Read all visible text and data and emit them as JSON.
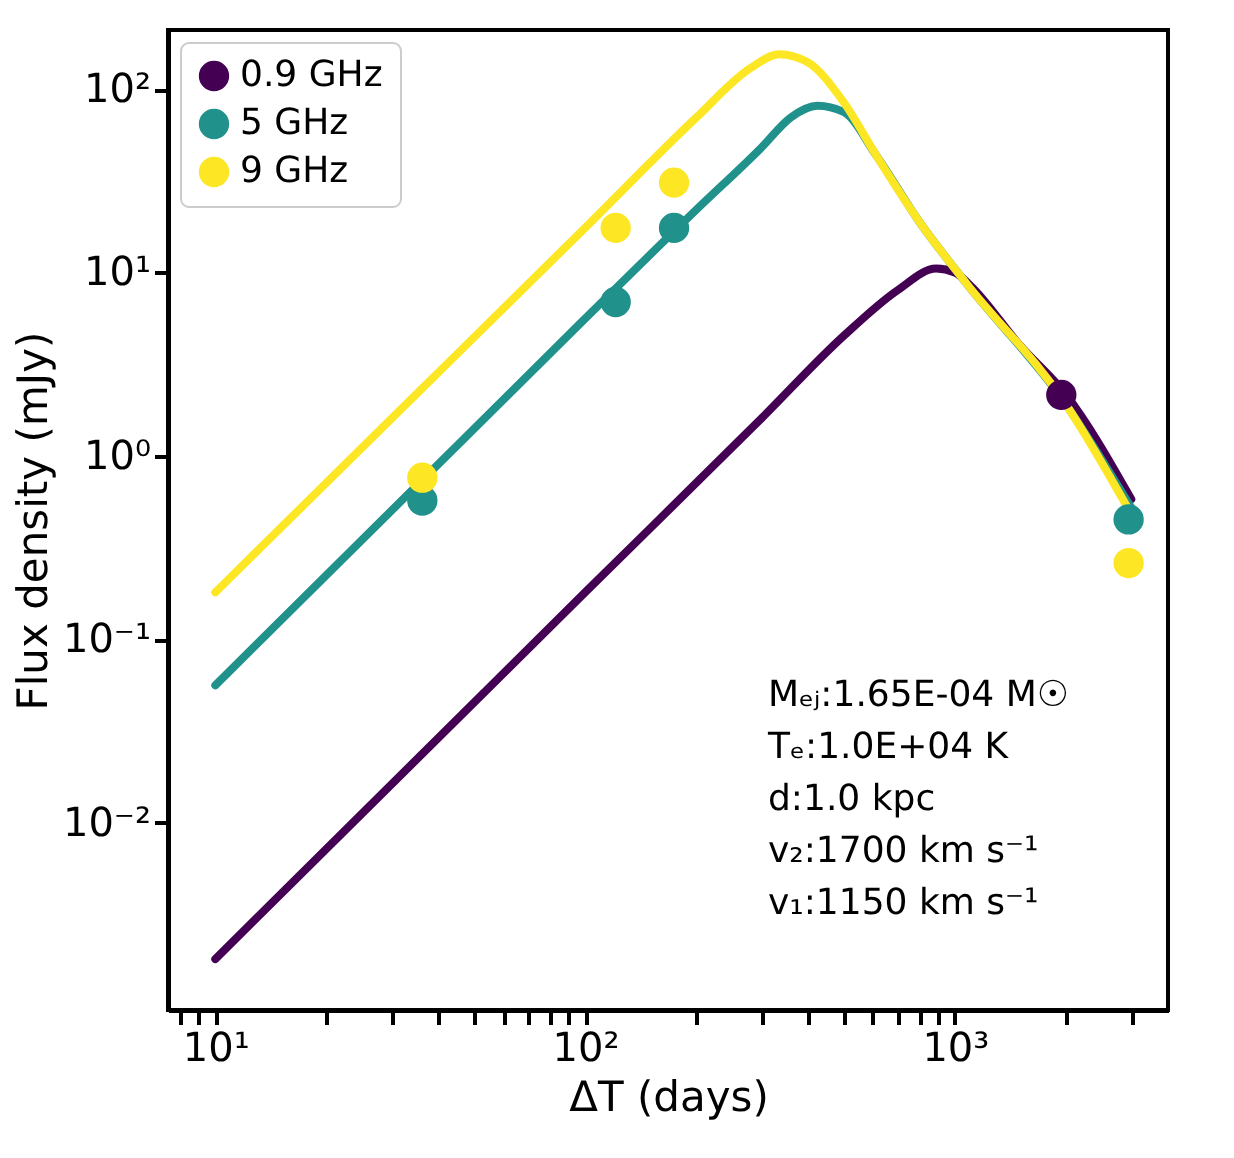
{
  "chart_data": {
    "type": "line",
    "xlabel": "ΔT (days)",
    "ylabel": "Flux density (mJy)",
    "log": "xy",
    "grid": false,
    "legend": "top left",
    "line_style": "solid",
    "xlim": [
      7.45,
      3770
    ],
    "ylim": [
      0.00095,
      210
    ],
    "xticks": [
      {
        "value": 8,
        "label": null
      },
      {
        "value": 9,
        "label": null
      },
      {
        "value": 10,
        "label": "10¹"
      },
      {
        "value": 20,
        "label": null
      },
      {
        "value": 30,
        "label": null
      },
      {
        "value": 40,
        "label": null
      },
      {
        "value": 50,
        "label": null
      },
      {
        "value": 60,
        "label": null
      },
      {
        "value": 70,
        "label": null
      },
      {
        "value": 80,
        "label": null
      },
      {
        "value": 90,
        "label": null
      },
      {
        "value": 100,
        "label": "10²"
      },
      {
        "value": 200,
        "label": null
      },
      {
        "value": 300,
        "label": null
      },
      {
        "value": 400,
        "label": null
      },
      {
        "value": 500,
        "label": null
      },
      {
        "value": 600,
        "label": null
      },
      {
        "value": 700,
        "label": null
      },
      {
        "value": 800,
        "label": null
      },
      {
        "value": 900,
        "label": null
      },
      {
        "value": 1000,
        "label": "10³"
      },
      {
        "value": 2000,
        "label": null
      },
      {
        "value": 3000,
        "label": null
      }
    ],
    "yticks": [
      {
        "value": 0.01,
        "label": "10⁻²"
      },
      {
        "value": 0.1,
        "label": "10⁻¹"
      },
      {
        "value": 1,
        "label": "10⁰"
      },
      {
        "value": 10,
        "label": "10¹"
      },
      {
        "value": 100,
        "label": "10²"
      }
    ],
    "series": [
      {
        "name": "0.9 GHz",
        "type": "scatter",
        "marker": "circle",
        "color": "#440154",
        "x": [
          1940
        ],
        "values": [
          2.15
        ]
      },
      {
        "name": "5 GHz",
        "type": "scatter",
        "marker": "circle",
        "color": "#21918c",
        "x": [
          36.3,
          121,
          174,
          2950
        ],
        "values": [
          0.57,
          6.9,
          17.5,
          0.45
        ]
      },
      {
        "name": "9 GHz",
        "type": "scatter",
        "marker": "circle",
        "color": "#fde725",
        "x": [
          36.3,
          121,
          174,
          2950
        ],
        "values": [
          0.76,
          17.5,
          30.9,
          0.26
        ]
      },
      {
        "type": "line",
        "marker": "none",
        "color": "#440154",
        "x": [
          10,
          100,
          300,
          500,
          700,
          890,
          1000,
          1100,
          1500,
          2000,
          3000
        ],
        "values": [
          0.0018,
          0.18,
          1.6,
          4.5,
          8,
          10.5,
          10,
          8.5,
          4,
          2.15,
          0.58
        ]
      },
      {
        "type": "line",
        "marker": "none",
        "color": "#21918c",
        "x": [
          10,
          100,
          200,
          300,
          360,
          425,
          500,
          615,
          800,
          1070,
          2000,
          3000
        ],
        "values": [
          0.056,
          5.6,
          22,
          48,
          70,
          81,
          75,
          43,
          19,
          8.8,
          1.9,
          0.52
        ]
      },
      {
        "type": "line",
        "marker": "none",
        "color": "#fde725",
        "x": [
          10,
          30,
          100,
          200,
          280,
          335,
          400,
          500,
          615,
          800,
          1070,
          2000,
          3000
        ],
        "values": [
          0.18,
          1.6,
          17.5,
          70,
          130,
          155,
          140,
          85,
          43,
          19,
          8.8,
          1.9,
          0.48
        ]
      }
    ],
    "annotations": [
      "Mₑⱼ:1.65E-04 M☉",
      "Tₑ:1.0E+04 K",
      "d:1.0 kpc",
      "v₂:1700 km s⁻¹",
      "v₁:1150 km s⁻¹"
    ]
  }
}
